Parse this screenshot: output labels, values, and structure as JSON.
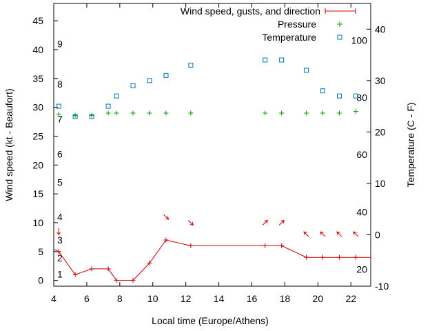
{
  "chart_data": {
    "type": "line",
    "xlabel": "Local time (Europe/Athens)",
    "ylabel": "Wind speed (kt - Beaufort)",
    "y2label": "Temperature (C - F)",
    "xlim": [
      4,
      23.2
    ],
    "ylim": [
      -1,
      48
    ],
    "y2lim": [
      -10,
      45
    ],
    "x_ticks": [
      "4",
      "6",
      "8",
      "10",
      "12",
      "14",
      "16",
      "18",
      "20",
      "22"
    ],
    "y_ticks": [
      "0",
      "5",
      "10",
      "15",
      "20",
      "25",
      "30",
      "35",
      "40",
      "45"
    ],
    "y2_ticks": [
      "-10",
      "0",
      "10",
      "20",
      "30",
      "40"
    ],
    "beaufort_labels": [
      {
        "label": "1",
        "kt": 1.1
      },
      {
        "label": "2",
        "kt": 3.9
      },
      {
        "label": "3",
        "kt": 7.0
      },
      {
        "label": "4",
        "kt": 11.0
      },
      {
        "label": "5",
        "kt": 17.0
      },
      {
        "label": "6",
        "kt": 21.9
      },
      {
        "label": "7",
        "kt": 28.0
      },
      {
        "label": "8",
        "kt": 34.0
      },
      {
        "label": "9",
        "kt": 41.0
      }
    ],
    "fahrenheit_labels": [
      {
        "label": "20",
        "celsius": -6.7
      },
      {
        "label": "40",
        "celsius": 4.4
      },
      {
        "label": "60",
        "celsius": 15.6
      },
      {
        "label": "80",
        "celsius": 26.7
      },
      {
        "label": "100",
        "celsius": 37.8
      }
    ],
    "legend": {
      "position": "top-right",
      "entries": [
        {
          "label": "Wind speed, gusts, and direction",
          "marker": "line-plus",
          "color": "#cc0000"
        },
        {
          "label": "Pressure",
          "marker": "plus",
          "color": "#009900"
        },
        {
          "label": "Temperature",
          "marker": "square",
          "color": "#0072bd"
        }
      ]
    },
    "series": [
      {
        "name": "Wind speed, gusts, and direction",
        "axis": "y",
        "color": "#cc0000",
        "x": [
          4.3,
          5.3,
          6.3,
          7.3,
          7.8,
          8.8,
          9.8,
          10.8,
          12.3,
          16.8,
          17.8,
          19.3,
          20.3,
          21.3,
          22.3
        ],
        "values": [
          5,
          1,
          2,
          2,
          0,
          0,
          3,
          7,
          6,
          6,
          6,
          4,
          4,
          4,
          4
        ],
        "direction_arrows": [
          {
            "x": 4.3,
            "y": 8.5,
            "dir": "S"
          },
          {
            "x": 10.8,
            "y": 11,
            "dir": "SE"
          },
          {
            "x": 12.3,
            "y": 10,
            "dir": "SE"
          },
          {
            "x": 16.8,
            "y": 10,
            "dir": "NE"
          },
          {
            "x": 17.8,
            "y": 10,
            "dir": "NE"
          },
          {
            "x": 19.3,
            "y": 8,
            "dir": "NW"
          },
          {
            "x": 20.3,
            "y": 8,
            "dir": "NW"
          },
          {
            "x": 21.3,
            "y": 8,
            "dir": "NW"
          },
          {
            "x": 22.3,
            "y": 8,
            "dir": "NW"
          }
        ]
      },
      {
        "name": "Pressure",
        "axis": "y",
        "color": "#009900",
        "x": [
          4.3,
          5.3,
          6.3,
          7.3,
          7.8,
          8.8,
          9.8,
          10.8,
          12.3,
          16.8,
          17.8,
          19.3,
          20.3,
          21.3,
          22.3
        ],
        "values": [
          28.8,
          28.6,
          28.6,
          29,
          29,
          29,
          29,
          29,
          29,
          29,
          29,
          29,
          29,
          29,
          29.3
        ]
      },
      {
        "name": "Temperature",
        "axis": "y2",
        "color": "#0072bd",
        "x": [
          4.3,
          5.3,
          6.3,
          7.3,
          7.8,
          8.8,
          9.8,
          10.8,
          12.3,
          16.8,
          17.8,
          19.3,
          20.3,
          21.3,
          22.3
        ],
        "values": [
          25,
          23,
          23,
          25,
          27,
          29,
          30,
          31,
          33,
          34,
          34,
          32,
          28,
          27,
          27
        ]
      }
    ]
  }
}
